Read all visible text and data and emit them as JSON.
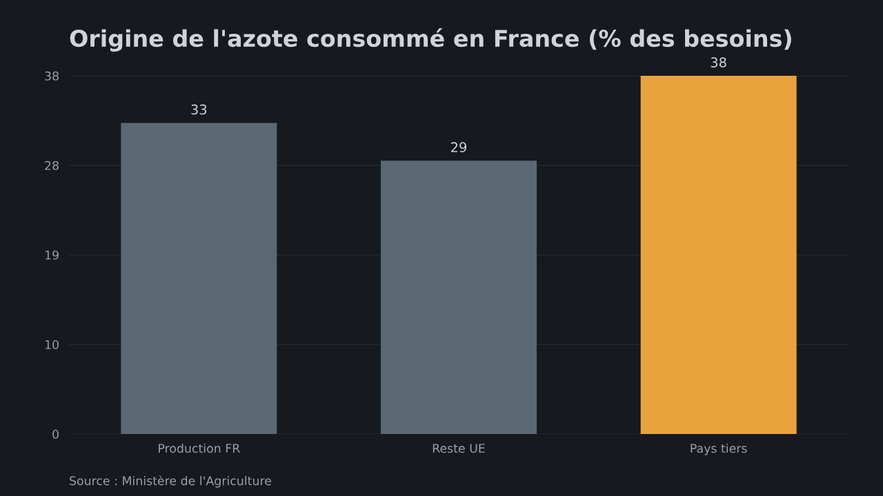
{
  "chart_data": {
    "type": "bar",
    "title": "Origine de l'azote consommé en France (% des besoins)",
    "categories": [
      "Production FR",
      "Reste UE",
      "Pays tiers"
    ],
    "values": [
      33,
      29,
      38
    ],
    "colors": [
      "#5c6873",
      "#5c6873",
      "#e8a33d"
    ],
    "ylim": [
      0,
      38
    ],
    "yticks": [
      0,
      {
        "value": 9.5,
        "label": "10"
      },
      19,
      {
        "value": 28.5,
        "label": "28"
      },
      38
    ],
    "grid": "y",
    "data_labels": true,
    "legend": false,
    "annotations": [
      "Source : Ministère de l'Agriculture"
    ]
  }
}
